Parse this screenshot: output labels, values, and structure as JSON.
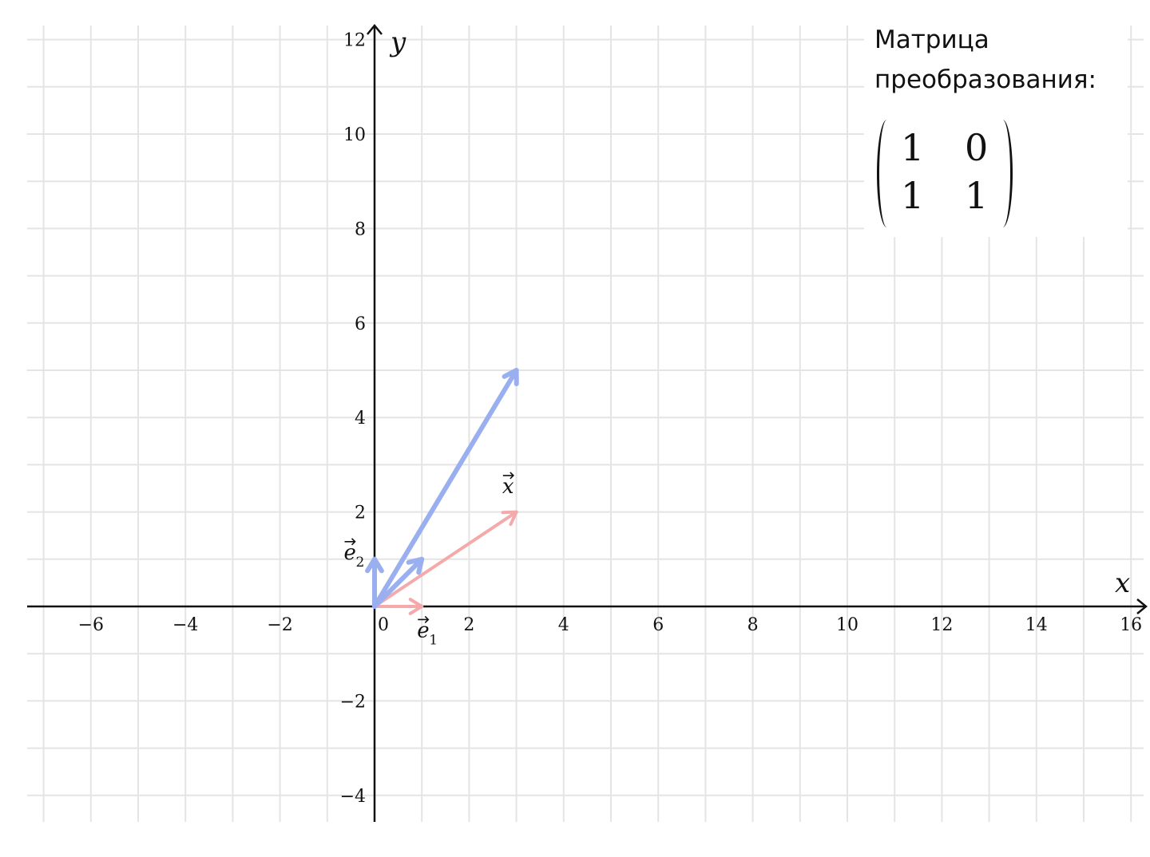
{
  "chart_data": {
    "type": "vector-diagram",
    "xlim": [
      -7.3,
      16.3
    ],
    "ylim": [
      -4.6,
      12.3
    ],
    "grid": true,
    "grid_minor_step": 1,
    "x_ticks": [
      -6,
      -4,
      -2,
      0,
      2,
      4,
      6,
      8,
      10,
      12,
      14,
      16
    ],
    "y_ticks": [
      -4,
      -2,
      2,
      4,
      6,
      8,
      10,
      12
    ],
    "x_tick_labels": [
      "−6",
      "−4",
      "−2",
      "0",
      "2",
      "4",
      "6",
      "8",
      "10",
      "12",
      "14",
      "16"
    ],
    "y_tick_labels": [
      "−4",
      "−2",
      "2",
      "4",
      "6",
      "8",
      "10",
      "12"
    ],
    "xlabel": "x",
    "ylabel": "y",
    "original_vectors": [
      {
        "id": "e1",
        "from": [
          0,
          0
        ],
        "to": [
          1,
          0
        ],
        "color": "#f4aaaa"
      },
      {
        "id": "e2",
        "from": [
          0,
          0
        ],
        "to": [
          0,
          1
        ],
        "color": "#f4aaaa"
      },
      {
        "id": "x",
        "from": [
          0,
          0
        ],
        "to": [
          3,
          2
        ],
        "color": "#f4aaaa"
      }
    ],
    "transformed_vectors": [
      {
        "id": "Ae1",
        "from": [
          0,
          0
        ],
        "to": [
          1,
          1
        ],
        "color": "#9aaff0"
      },
      {
        "id": "Ae2",
        "from": [
          0,
          0
        ],
        "to": [
          0,
          1
        ],
        "color": "#9aaff0"
      },
      {
        "id": "Ax",
        "from": [
          0,
          0
        ],
        "to": [
          3,
          5
        ],
        "color": "#9aaff0"
      }
    ],
    "vector_labels": [
      {
        "id": "e1",
        "text": "e",
        "sub": "1",
        "at": [
          0.9,
          -0.65
        ]
      },
      {
        "id": "e2",
        "text": "e",
        "sub": "2",
        "at": [
          -0.65,
          1.0
        ]
      },
      {
        "id": "x",
        "text": "x",
        "sub": "",
        "at": [
          2.7,
          2.4
        ]
      }
    ]
  },
  "matrix_panel": {
    "caption_line1": "Матрица",
    "caption_line2": "преобразования:",
    "matrix": [
      [
        "1",
        "0"
      ],
      [
        "1",
        "1"
      ]
    ]
  }
}
